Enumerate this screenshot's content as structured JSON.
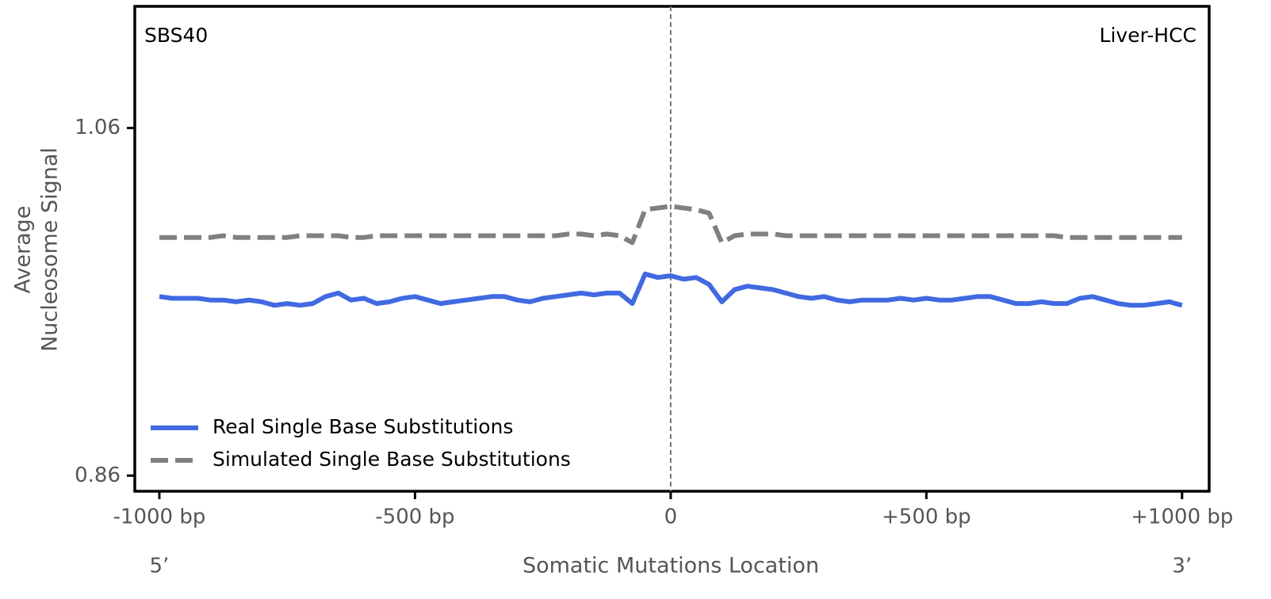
{
  "chart_data": {
    "type": "line",
    "title": "SBS40",
    "subtitle": "Liver-HCC",
    "ylabel_lines": [
      "Average",
      "Nucleosome Signal"
    ],
    "xlabel": "Somatic Mutations Location",
    "annotations": [
      {
        "text": "5’",
        "x": -1000
      },
      {
        "text": "3’",
        "x": 1000
      }
    ],
    "vline": 0,
    "x": [
      -1000,
      -975,
      -950,
      -925,
      -900,
      -875,
      -850,
      -825,
      -800,
      -775,
      -750,
      -725,
      -700,
      -675,
      -650,
      -625,
      -600,
      -575,
      -550,
      -525,
      -500,
      -475,
      -450,
      -425,
      -400,
      -375,
      -350,
      -325,
      -300,
      -275,
      -250,
      -225,
      -200,
      -175,
      -150,
      -125,
      -100,
      -75,
      -50,
      -25,
      0,
      25,
      50,
      75,
      100,
      125,
      150,
      175,
      200,
      225,
      250,
      275,
      300,
      325,
      350,
      375,
      400,
      425,
      450,
      475,
      500,
      525,
      550,
      575,
      600,
      625,
      650,
      675,
      700,
      725,
      750,
      775,
      800,
      825,
      850,
      875,
      900,
      925,
      950,
      975,
      1000
    ],
    "series": [
      {
        "name": "Real Single Base Substitutions",
        "color": "#4169e1",
        "dash": false,
        "values": [
          0.963,
          0.962,
          0.962,
          0.962,
          0.961,
          0.961,
          0.96,
          0.961,
          0.96,
          0.958,
          0.959,
          0.958,
          0.959,
          0.963,
          0.965,
          0.961,
          0.962,
          0.959,
          0.96,
          0.962,
          0.963,
          0.961,
          0.959,
          0.96,
          0.961,
          0.962,
          0.963,
          0.963,
          0.961,
          0.96,
          0.962,
          0.963,
          0.964,
          0.965,
          0.964,
          0.965,
          0.965,
          0.959,
          0.976,
          0.974,
          0.975,
          0.973,
          0.974,
          0.97,
          0.96,
          0.967,
          0.969,
          0.968,
          0.967,
          0.965,
          0.963,
          0.962,
          0.963,
          0.961,
          0.96,
          0.961,
          0.961,
          0.961,
          0.962,
          0.961,
          0.962,
          0.961,
          0.961,
          0.962,
          0.963,
          0.963,
          0.961,
          0.959,
          0.959,
          0.96,
          0.959,
          0.959,
          0.962,
          0.963,
          0.961,
          0.959,
          0.958,
          0.958,
          0.959,
          0.96,
          0.958
        ]
      },
      {
        "name": "Simulated Single Base Substitutions",
        "color": "#808080",
        "dash": true,
        "values": [
          0.997,
          0.997,
          0.997,
          0.997,
          0.997,
          0.998,
          0.997,
          0.997,
          0.997,
          0.997,
          0.997,
          0.998,
          0.998,
          0.998,
          0.998,
          0.997,
          0.997,
          0.998,
          0.998,
          0.998,
          0.998,
          0.998,
          0.998,
          0.998,
          0.998,
          0.998,
          0.998,
          0.998,
          0.998,
          0.998,
          0.998,
          0.998,
          0.999,
          0.999,
          0.998,
          0.999,
          0.998,
          0.994,
          1.013,
          1.014,
          1.015,
          1.014,
          1.013,
          1.011,
          0.994,
          0.998,
          0.999,
          0.999,
          0.999,
          0.998,
          0.998,
          0.998,
          0.998,
          0.998,
          0.998,
          0.998,
          0.998,
          0.998,
          0.998,
          0.998,
          0.998,
          0.998,
          0.998,
          0.998,
          0.998,
          0.998,
          0.998,
          0.998,
          0.998,
          0.998,
          0.998,
          0.997,
          0.997,
          0.997,
          0.997,
          0.997,
          0.997,
          0.997,
          0.997,
          0.997,
          0.997
        ]
      }
    ],
    "xlim": [
      -1048,
      1053
    ],
    "ylim": [
      0.851,
      1.13
    ],
    "xticks": [
      {
        "value": -1000,
        "label": "-1000 bp"
      },
      {
        "value": -500,
        "label": "-500 bp"
      },
      0,
      {
        "value": 500,
        "label": "+500 bp"
      },
      {
        "value": 1000,
        "label": "+1000 bp"
      }
    ],
    "yticks": [
      0.86,
      1.06
    ],
    "legend": "lower left",
    "grid": false
  }
}
